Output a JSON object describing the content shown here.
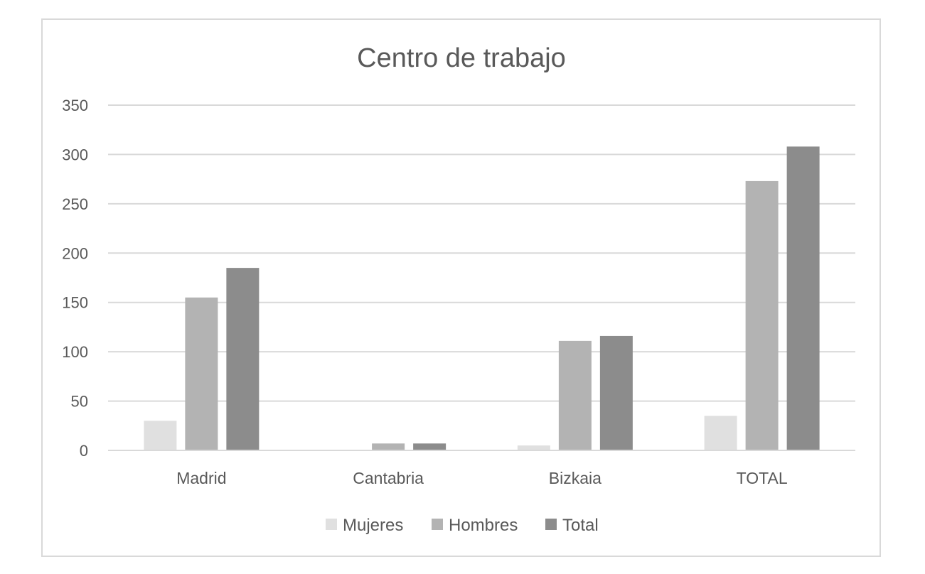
{
  "chart_data": {
    "type": "bar",
    "title": "Centro de trabajo",
    "categories": [
      "Madrid",
      "Cantabria",
      "Bizkaia",
      "TOTAL"
    ],
    "series": [
      {
        "name": "Mujeres",
        "color": "#e0e0e0",
        "values": [
          30,
          0,
          5,
          35
        ]
      },
      {
        "name": "Hombres",
        "color": "#b3b3b3",
        "values": [
          155,
          7,
          111,
          273
        ]
      },
      {
        "name": "Total",
        "color": "#8c8c8c",
        "values": [
          185,
          7,
          116,
          308
        ]
      }
    ],
    "ylim": [
      0,
      350
    ],
    "yticks": [
      "0",
      "50",
      "100",
      "150",
      "200",
      "250",
      "300",
      "350"
    ],
    "grid": true,
    "legend": "bottom",
    "xlabel": "",
    "ylabel": ""
  }
}
